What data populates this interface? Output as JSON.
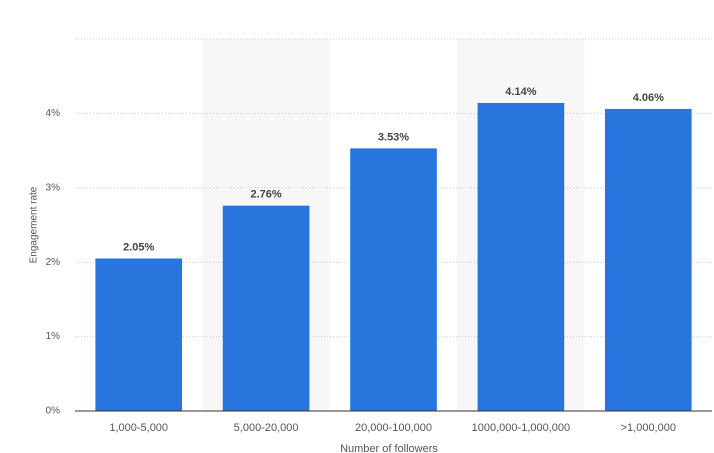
{
  "chart_data": {
    "type": "bar",
    "x_label": "Number of followers",
    "y_label": "Engagement rate",
    "categories": [
      "1,000-5,000",
      "5,000-20,000",
      "20,000-100,000",
      "1000,000-1,000,000",
      ">1,000,000"
    ],
    "values": [
      2.05,
      2.76,
      3.53,
      4.14,
      4.06
    ],
    "value_labels": [
      "2.05%",
      "2.76%",
      "3.53%",
      "4.14%",
      "4.06%"
    ],
    "color": "#2876dd",
    "ylim": [
      0,
      5
    ],
    "yticks": [
      {
        "value": 0,
        "label": "0%"
      },
      {
        "value": 1,
        "label": "1%"
      },
      {
        "value": 2,
        "label": "2%"
      },
      {
        "value": 3,
        "label": "3%"
      },
      {
        "value": 4,
        "label": "4%"
      }
    ],
    "grid": true
  }
}
